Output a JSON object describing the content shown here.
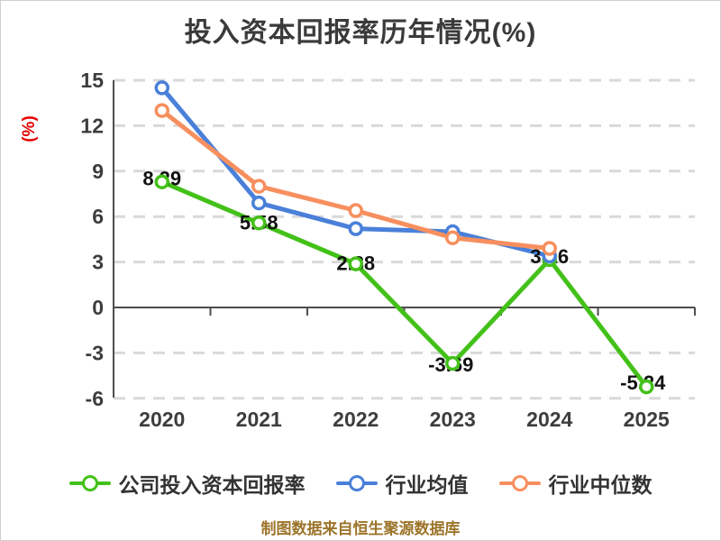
{
  "title": "投入资本回报率历年情况(%)",
  "y_axis_unit_label": "(%)",
  "footer_note": "制图数据来自恒生聚源数据库",
  "colors": {
    "company_line": "#43c119",
    "industry_mean_line": "#4a80d9",
    "industry_median_line": "#f78f5e",
    "title_text": "#3a3a3a",
    "axis": "#4d4d4d",
    "gridline": "#d9d9d9",
    "tick_text": "#3d3d3d",
    "data_label_text": "#111111",
    "unit_label_text": "#e60000",
    "footer_text": "#9c742a"
  },
  "chart_data": {
    "type": "line",
    "title": "投入资本回报率历年情况(%)",
    "categories": [
      "2020",
      "2021",
      "2022",
      "2023",
      "2024",
      "2025"
    ],
    "series": [
      {
        "name": "公司投入资本回报率",
        "color": "#43c119",
        "values": [
          8.29,
          5.58,
          2.88,
          -3.69,
          3.16,
          -5.24
        ],
        "point_labels": [
          "8.29",
          "5.58",
          "2.88",
          "-3.69",
          "3.16",
          "-5.24"
        ]
      },
      {
        "name": "行业均值",
        "color": "#4a80d9",
        "values": [
          14.5,
          6.9,
          5.2,
          5.0,
          3.4,
          null
        ],
        "point_labels": []
      },
      {
        "name": "行业中位数",
        "color": "#f78f5e",
        "values": [
          13.0,
          8.0,
          6.4,
          4.6,
          3.9,
          null
        ],
        "point_labels": []
      }
    ],
    "xlabel": "",
    "ylabel": "(%)",
    "ylim": [
      -6,
      15
    ],
    "yticks": [
      15,
      12,
      9,
      6,
      3,
      0,
      -3,
      -6
    ],
    "grid": "horizontal-dashed",
    "legend_position": "bottom",
    "marker": "white-filled-circle"
  },
  "legend": {
    "items": [
      {
        "label": "公司投入资本回报率",
        "color": "#43c119"
      },
      {
        "label": "行业均值",
        "color": "#4a80d9"
      },
      {
        "label": "行业中位数",
        "color": "#f78f5e"
      }
    ]
  }
}
